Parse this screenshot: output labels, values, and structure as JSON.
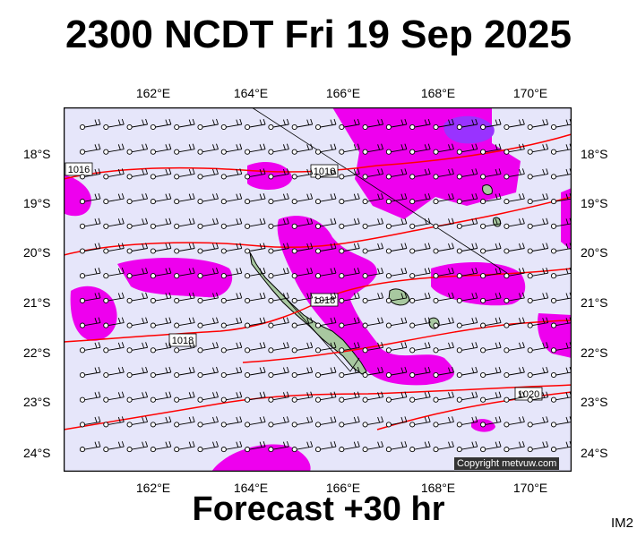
{
  "title": "2300 NCDT Fri 19 Sep 2025",
  "forecast_label": "Forecast +30 hr",
  "product_code": "IM2",
  "copyright": "Copyright metvuw.com",
  "longitude_labels": [
    "162°E",
    "164°E",
    "166°E",
    "168°E",
    "170°E"
  ],
  "latitude_labels": [
    "18°S",
    "19°S",
    "20°S",
    "21°S",
    "22°S",
    "23°S",
    "24°S"
  ],
  "isobar_labels": [
    "1016",
    "1016",
    "1018",
    "1018",
    "1020"
  ],
  "colors": {
    "background": "#e6e6fa",
    "rain_light": "#ee00ee",
    "rain_heavy": "#9933ff",
    "isobar": "#ff0000",
    "land": "#a8c8a0",
    "coast": "#000000"
  }
}
